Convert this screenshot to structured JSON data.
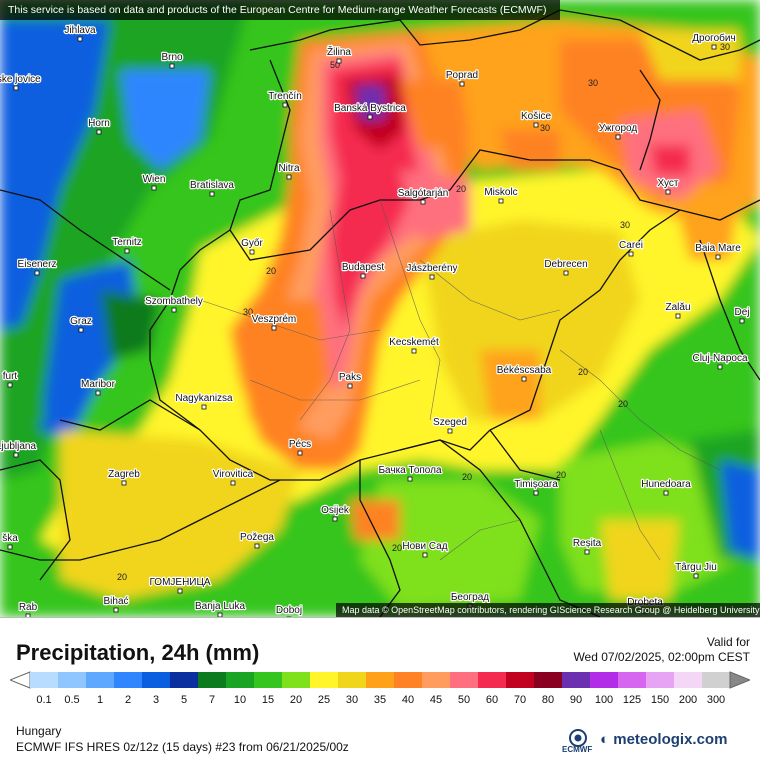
{
  "disclaimer": "This service is based on data and products of the European Centre for Medium-range Weather Forecasts (ECMWF)",
  "attribution": "Map data © OpenStreetMap contributors, rendering GIScience Research Group @ Heidelberg University",
  "title": "Precipitation, 24h (mm)",
  "valid_label": "Valid for",
  "valid_time": "Wed 07/02/2025, 02:00pm CEST",
  "region": "Hungary",
  "model": "ECMWF IFS HRES 0z/12z (15 days) #23 from  06/21/2025/00z",
  "ecmwf_logo": "ECMWF",
  "brand": "meteologix.com",
  "legend": {
    "ticks": [
      "0.1",
      "0.5",
      "1",
      "2",
      "3",
      "5",
      "7",
      "10",
      "15",
      "20",
      "25",
      "30",
      "35",
      "40",
      "45",
      "50",
      "60",
      "70",
      "80",
      "90",
      "100",
      "125",
      "150",
      "200",
      "300"
    ],
    "colors": [
      "#b8dcff",
      "#8fc6ff",
      "#5fa8ff",
      "#2f86ff",
      "#0a5fe0",
      "#0a2f9e",
      "#0c7a1f",
      "#1aa424",
      "#34c51f",
      "#7fe01c",
      "#fff52a",
      "#f1d51a",
      "#ffa21a",
      "#ff8224",
      "#ff9c5e",
      "#ff6f7f",
      "#f52a50",
      "#c2001f",
      "#8a0021",
      "#6c2fb0",
      "#b22de8",
      "#d665ef",
      "#e8a4f4",
      "#f4d6f6",
      "#d0d0d0"
    ]
  },
  "map": {
    "cities": [
      "Jihlava",
      "Brno",
      "Žilina",
      "Poprad",
      "Дрогобич",
      "Trenčín",
      "Banská Bystrica",
      "Košice",
      "Horn",
      "Ужгород",
      "Nitra",
      "Wien",
      "Bratislava",
      "Salgótarján",
      "Miskolc",
      "Хуст",
      "Ternitz",
      "Győr",
      "Eisenerz",
      "Budapest",
      "Jászberény",
      "Debrecen",
      "Carei",
      "Baia Mare",
      "Szombathely",
      "Graz",
      "Veszprém",
      "Zalău",
      "Kecskemét",
      "Maribor",
      "Paks",
      "Békéscsaba",
      "Cluj-Napoca",
      "Nagykanizsa",
      "Szeged",
      "Pécs",
      "Zagreb",
      "Virovitica",
      "Бачка Топола",
      "Timișoara",
      "Hunedoara",
      "Osijek",
      "Požega",
      "Нови Сад",
      "Reșita",
      "Târgu Jiu",
      "ГОМЈЕНИЦА",
      "Bihać",
      "Banja Luka",
      "Doboj",
      "Београд",
      "Drobeta",
      "Ljubljana",
      "Dej",
      "Rab",
      "eske jovice",
      "furt",
      "ška"
    ],
    "contour_values": [
      "50",
      "30",
      "30",
      "20",
      "30",
      "20",
      "30",
      "20",
      "20",
      "20",
      "20",
      "20",
      "30",
      "20"
    ]
  }
}
